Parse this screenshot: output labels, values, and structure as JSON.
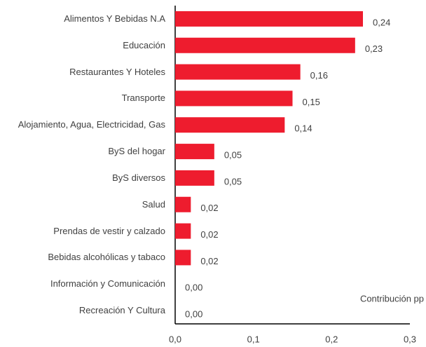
{
  "chart_data": {
    "type": "barh",
    "categories": [
      "Alimentos Y Bebidas N.A",
      "Educación",
      "Restaurantes Y Hoteles",
      "Transporte",
      "Alojamiento, Agua, Electricidad, Gas",
      "ByS del hogar",
      "ByS diversos",
      "Salud",
      "Prendas de vestir y calzado",
      "Bebidas alcohólicas y tabaco",
      "Información y Comunicación",
      "Recreación Y Cultura"
    ],
    "values": [
      0.24,
      0.23,
      0.16,
      0.15,
      0.14,
      0.05,
      0.05,
      0.02,
      0.02,
      0.02,
      0.0,
      0.0
    ],
    "value_labels": [
      "0,24",
      "0,23",
      "0,16",
      "0,15",
      "0,14",
      "0,05",
      "0,05",
      "0,02",
      "0,02",
      "0,02",
      "0,00",
      "0,00"
    ],
    "color": "#ee1c2e",
    "xlim": [
      0,
      0.3
    ],
    "xticks": [
      {
        "value": 0,
        "label": "0,0"
      },
      {
        "value": 0.1,
        "label": "0,1"
      },
      {
        "value": 0.2,
        "label": "0,2"
      },
      {
        "value": 0.3,
        "label": "0,3"
      }
    ],
    "annotation": "Contribución pp"
  }
}
